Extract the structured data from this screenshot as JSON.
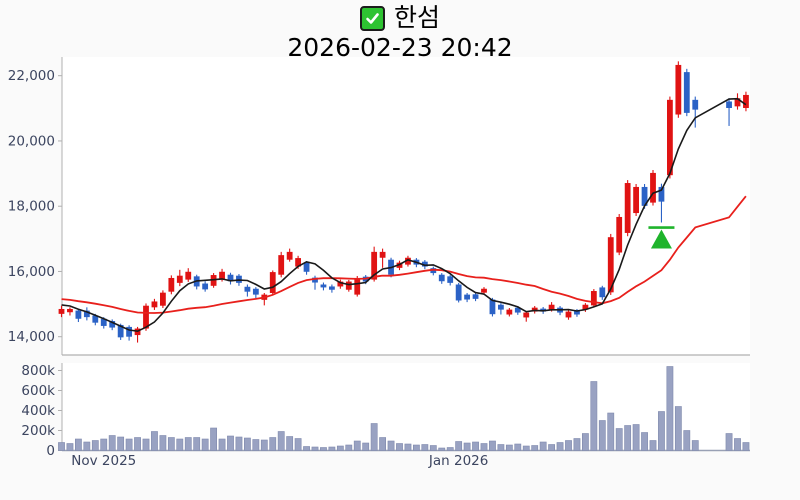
{
  "page": {
    "background": "#fafafa"
  },
  "header": {
    "checkbox_icon": "green-checked-checkbox",
    "title": "한섬",
    "datetime": "2026-02-23 20:42"
  },
  "chart_data": {
    "type": "candlestick",
    "title": "한섬",
    "subtitle": "2026-02-23 20:42",
    "panels": [
      "price",
      "volume"
    ],
    "legend": "none",
    "grid": "off",
    "price_axis": {
      "side": "left",
      "range": [
        13450,
        22570
      ],
      "ticks": [
        {
          "value": 14000,
          "label": "14,000"
        },
        {
          "value": 16000,
          "label": "16,000"
        },
        {
          "value": 18000,
          "label": "18,000"
        },
        {
          "value": 20000,
          "label": "20,000"
        },
        {
          "value": 22000,
          "label": "22,000"
        }
      ]
    },
    "volume_axis": {
      "side": "left",
      "unit": "thousands",
      "range": [
        0,
        870
      ],
      "ticks": [
        {
          "value": 0,
          "label": "0"
        },
        {
          "value": 200,
          "label": "200k"
        },
        {
          "value": 400,
          "label": "400k"
        },
        {
          "value": 600,
          "label": "600k"
        },
        {
          "value": 800,
          "label": "800k"
        }
      ]
    },
    "x_axis": {
      "month_labels": [
        {
          "index": 5,
          "label": "Nov 2025"
        },
        {
          "index": 47,
          "label": "Jan 2026"
        }
      ]
    },
    "colors": {
      "up": "#e01313",
      "down": "#2b62c6",
      "ma_short": "#1a1a1a",
      "ma_long": "#e8201c",
      "volume": "#99a2c2",
      "volume_edge": "#7f89ac",
      "marker": "#1fb42c",
      "axis": "#b0b0b0",
      "baseline": "#98a0b4",
      "label": "#3c4560",
      "plot_bg": "#ffffff"
    },
    "moving_averages": {
      "short_window": 5,
      "long_window": 20
    },
    "prehistory_closes": [
      15350,
      15300,
      15320,
      15280,
      15250,
      15300,
      15260,
      15200,
      15180,
      15220,
      15150,
      15100,
      15120,
      15080,
      15050,
      15020,
      15050,
      15000,
      14950
    ],
    "marker": {
      "candle_index": 71,
      "shape": "triangle-up-with-line",
      "meaning": "buy-signal"
    },
    "candles_format": [
      "open",
      "high",
      "low",
      "close",
      "volume_k"
    ],
    "candles": [
      [
        14700,
        14950,
        14600,
        14850,
        80
      ],
      [
        14750,
        14900,
        14650,
        14850,
        70
      ],
      [
        14800,
        14850,
        14450,
        14550,
        115
      ],
      [
        14800,
        14900,
        14500,
        14600,
        85
      ],
      [
        14650,
        14700,
        14350,
        14430,
        100
      ],
      [
        14550,
        14600,
        14250,
        14330,
        115
      ],
      [
        14480,
        14530,
        14200,
        14280,
        150
      ],
      [
        14360,
        14400,
        13900,
        13980,
        135
      ],
      [
        14300,
        14350,
        13880,
        14000,
        115
      ],
      [
        14050,
        14300,
        13820,
        14250,
        130
      ],
      [
        14250,
        15020,
        14180,
        14950,
        115
      ],
      [
        14900,
        15160,
        14820,
        15080,
        190
      ],
      [
        14950,
        15420,
        14880,
        15350,
        150
      ],
      [
        15380,
        15880,
        15300,
        15800,
        130
      ],
      [
        15650,
        16050,
        15550,
        15870,
        115
      ],
      [
        15750,
        16100,
        15680,
        15990,
        130
      ],
      [
        15850,
        15900,
        15450,
        15540,
        130
      ],
      [
        15630,
        15700,
        15380,
        15450,
        115
      ],
      [
        15560,
        15950,
        15500,
        15890,
        225
      ],
      [
        15750,
        16080,
        15690,
        15990,
        115
      ],
      [
        15900,
        15960,
        15600,
        15700,
        145
      ],
      [
        15870,
        15920,
        15560,
        15650,
        135
      ],
      [
        15530,
        15600,
        15230,
        15380,
        125
      ],
      [
        15470,
        15520,
        15180,
        15290,
        110
      ],
      [
        15130,
        15340,
        14960,
        15290,
        105
      ],
      [
        15340,
        16030,
        15270,
        15980,
        130
      ],
      [
        15900,
        16600,
        15820,
        16500,
        190
      ],
      [
        16360,
        16700,
        16300,
        16600,
        140
      ],
      [
        16150,
        16480,
        16080,
        16410,
        120
      ],
      [
        16270,
        16320,
        15900,
        15990,
        40
      ],
      [
        15810,
        15870,
        15440,
        15660,
        35
      ],
      [
        15600,
        15660,
        15420,
        15510,
        30
      ],
      [
        15540,
        15600,
        15350,
        15440,
        35
      ],
      [
        15540,
        15750,
        15470,
        15690,
        45
      ],
      [
        15440,
        15740,
        15380,
        15690,
        55
      ],
      [
        15290,
        15860,
        15230,
        15800,
        95
      ],
      [
        15840,
        15890,
        15610,
        15690,
        75
      ],
      [
        15750,
        16760,
        15690,
        16600,
        270
      ],
      [
        16420,
        16700,
        16110,
        16600,
        130
      ],
      [
        16360,
        16420,
        15820,
        15900,
        95
      ],
      [
        16110,
        16330,
        16040,
        16270,
        70
      ],
      [
        16210,
        16480,
        16150,
        16420,
        65
      ],
      [
        16360,
        16410,
        16130,
        16210,
        55
      ],
      [
        16300,
        16350,
        16070,
        16150,
        60
      ],
      [
        16100,
        16150,
        15880,
        15950,
        50
      ],
      [
        15900,
        15950,
        15620,
        15700,
        25
      ],
      [
        15850,
        15900,
        15570,
        15650,
        30
      ],
      [
        15600,
        15650,
        15050,
        15110,
        90
      ],
      [
        15290,
        15340,
        15060,
        15140,
        75
      ],
      [
        15300,
        15360,
        15090,
        15160,
        85
      ],
      [
        15350,
        15520,
        15280,
        15470,
        70
      ],
      [
        15140,
        15190,
        14620,
        14690,
        95
      ],
      [
        14980,
        15030,
        14680,
        14830,
        60
      ],
      [
        14680,
        14880,
        14620,
        14830,
        55
      ],
      [
        14890,
        14940,
        14670,
        14740,
        65
      ],
      [
        14590,
        14790,
        14460,
        14740,
        45
      ],
      [
        14770,
        14940,
        14710,
        14890,
        50
      ],
      [
        14860,
        14910,
        14700,
        14770,
        85
      ],
      [
        14830,
        15060,
        14770,
        14980,
        60
      ],
      [
        14890,
        14940,
        14660,
        14740,
        80
      ],
      [
        14590,
        14820,
        14520,
        14770,
        100
      ],
      [
        14800,
        14850,
        14610,
        14680,
        120
      ],
      [
        14830,
        15030,
        14760,
        14980,
        170
      ],
      [
        14960,
        15460,
        14900,
        15400,
        690
      ],
      [
        15510,
        15560,
        15130,
        15210,
        300
      ],
      [
        15360,
        17150,
        15280,
        17050,
        375
      ],
      [
        16580,
        17760,
        16500,
        17670,
        220
      ],
      [
        17180,
        18800,
        17080,
        18710,
        250
      ],
      [
        17790,
        18680,
        17700,
        18590,
        260
      ],
      [
        18590,
        18680,
        17920,
        18010,
        180
      ],
      [
        18110,
        19110,
        18020,
        19020,
        100
      ],
      [
        18590,
        18690,
        17500,
        18140,
        390
      ],
      [
        18950,
        21360,
        18850,
        21260,
        840
      ],
      [
        20810,
        22440,
        20710,
        22330,
        440
      ],
      [
        22110,
        22210,
        20760,
        20860,
        200
      ],
      [
        21260,
        21360,
        20410,
        20960,
        100
      ],
      null,
      null,
      null,
      [
        21210,
        21310,
        20460,
        21010,
        170
      ],
      [
        21060,
        21460,
        20960,
        21310,
        120
      ],
      [
        21010,
        21510,
        20910,
        21410,
        80
      ]
    ]
  }
}
